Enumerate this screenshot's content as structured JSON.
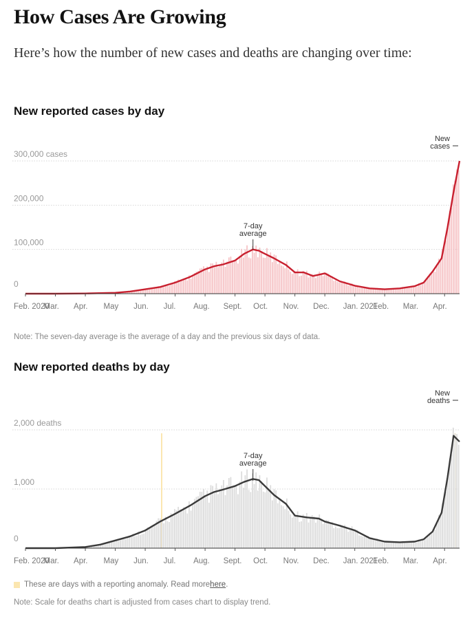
{
  "headline": "How Cases Are Growing",
  "deck": "Here’s how the number of new cases and deaths are changing over time:",
  "months": [
    "Feb. 2020",
    "Mar.",
    "Apr.",
    "May",
    "Jun.",
    "Jul.",
    "Aug.",
    "Sept.",
    "Oct.",
    "Nov.",
    "Dec.",
    "Jan. 2021",
    "Feb.",
    "Mar.",
    "Apr."
  ],
  "cases_chart": {
    "title": "New reported cases by day",
    "ytick_labels": [
      "300,000 cases",
      "200,000",
      "100,000",
      "0"
    ],
    "annotation_avg": [
      "7-day",
      "average"
    ],
    "annotation_new": [
      "New",
      "cases"
    ],
    "note": "Note: The seven-day average is the average of a day and the previous six days of data."
  },
  "deaths_chart": {
    "title": "New reported deaths by day",
    "ytick_labels": [
      "2,000 deaths",
      "1,000",
      "0"
    ],
    "annotation_avg": [
      "7-day",
      "average"
    ],
    "annotation_new": [
      "New",
      "deaths"
    ],
    "legend_text": "These are days with a reporting anomaly. Read more ",
    "legend_link": "here",
    "legend_end": ".",
    "note": "Note: Scale for deaths chart is adjusted from cases chart to display trend."
  },
  "colors": {
    "cases_line": "#c8202f",
    "cases_bars": "#f6c3c6",
    "deaths_line": "#3a3a3a",
    "deaths_bars": "#dcdcdc",
    "anomaly": "#fbe6b0"
  },
  "chart_data": [
    {
      "type": "area",
      "title": "New reported cases by day",
      "ylabel": "cases",
      "ylim": [
        0,
        300000
      ],
      "yticks": [
        0,
        100000,
        200000,
        300000
      ],
      "grid": true,
      "x": [
        0,
        1,
        2,
        3,
        3.5,
        4,
        4.5,
        5,
        5.5,
        6,
        6.3,
        6.6,
        7,
        7.3,
        7.6,
        7.8,
        8,
        8.3,
        8.7,
        9,
        9.3,
        9.6,
        10,
        10.5,
        11,
        11.5,
        12,
        12.5,
        13,
        13.3,
        13.6,
        13.9,
        14.1,
        14.3,
        14.5
      ],
      "series": [
        {
          "values": [
            0,
            0,
            500,
            2000,
            5000,
            10000,
            15000,
            25000,
            38000,
            55000,
            62000,
            66000,
            75000,
            90000,
            100000,
            97000,
            90000,
            80000,
            65000,
            48000,
            48000,
            40000,
            46000,
            28000,
            18000,
            12000,
            10000,
            12000,
            17000,
            25000,
            50000,
            80000,
            150000,
            230000,
            300000
          ]
        }
      ]
    },
    {
      "type": "area",
      "title": "New reported deaths by day",
      "ylabel": "deaths",
      "ylim": [
        0,
        2000
      ],
      "yticks": [
        0,
        1000,
        2000
      ],
      "grid": true,
      "x": [
        0,
        1,
        2,
        2.5,
        3,
        3.5,
        4,
        4.5,
        5,
        5.5,
        6,
        6.3,
        6.6,
        7,
        7.3,
        7.6,
        7.8,
        8,
        8.3,
        8.7,
        9,
        9.4,
        9.8,
        10,
        10.5,
        11,
        11.5,
        12,
        12.5,
        13,
        13.3,
        13.6,
        13.9,
        14.1,
        14.3,
        14.5
      ],
      "series": [
        {
          "values": [
            0,
            0,
            20,
            60,
            130,
            200,
            300,
            450,
            580,
            720,
            880,
            950,
            990,
            1050,
            1120,
            1170,
            1150,
            1050,
            900,
            750,
            550,
            520,
            500,
            450,
            380,
            300,
            170,
            110,
            100,
            110,
            150,
            280,
            600,
            1200,
            1900,
            1800
          ]
        }
      ]
    }
  ]
}
